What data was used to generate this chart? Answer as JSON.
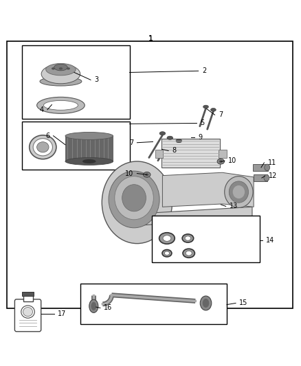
{
  "bg_color": "#ffffff",
  "line_color": "#000000",
  "part_color": "#555555",
  "label_fs": 7
}
